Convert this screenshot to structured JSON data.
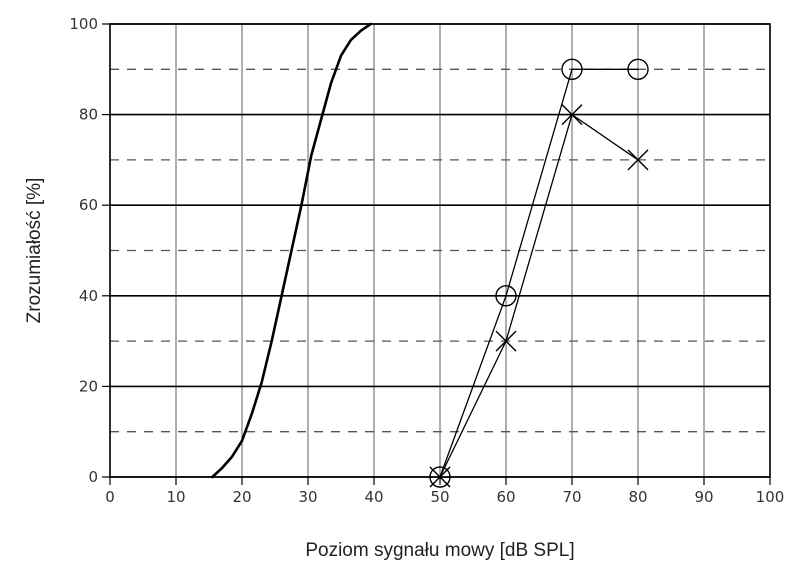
{
  "chart_data": {
    "type": "line",
    "xlabel": "Poziom sygnału mowy [dB SPL]",
    "ylabel": "Zrozumiałość [%]",
    "xlim": [
      0,
      100
    ],
    "ylim": [
      0,
      100
    ],
    "x_ticks": [
      0,
      10,
      20,
      30,
      40,
      50,
      60,
      70,
      80,
      90,
      100
    ],
    "y_ticks": [
      0,
      20,
      40,
      60,
      80,
      100
    ],
    "y_minor_dashed": [
      10,
      30,
      50,
      70,
      90
    ],
    "grid": true,
    "legend": "none",
    "series": [
      {
        "marker": "none",
        "x": [
          15.5,
          17,
          18.5,
          20,
          21.5,
          23,
          24.5,
          26,
          27.5,
          29,
          30.5,
          32,
          33.5,
          35,
          36.5,
          38,
          39.5
        ],
        "y": [
          0,
          2,
          4.5,
          8,
          14,
          21,
          30,
          40,
          50,
          60,
          71,
          79,
          87,
          93,
          96.5,
          98.5,
          100
        ]
      },
      {
        "marker": "circle",
        "x": [
          50,
          60,
          70,
          80
        ],
        "y": [
          0,
          40,
          90,
          90
        ]
      },
      {
        "marker": "x",
        "x": [
          50,
          60,
          70,
          80
        ],
        "y": [
          0,
          30,
          80,
          70
        ]
      }
    ]
  }
}
